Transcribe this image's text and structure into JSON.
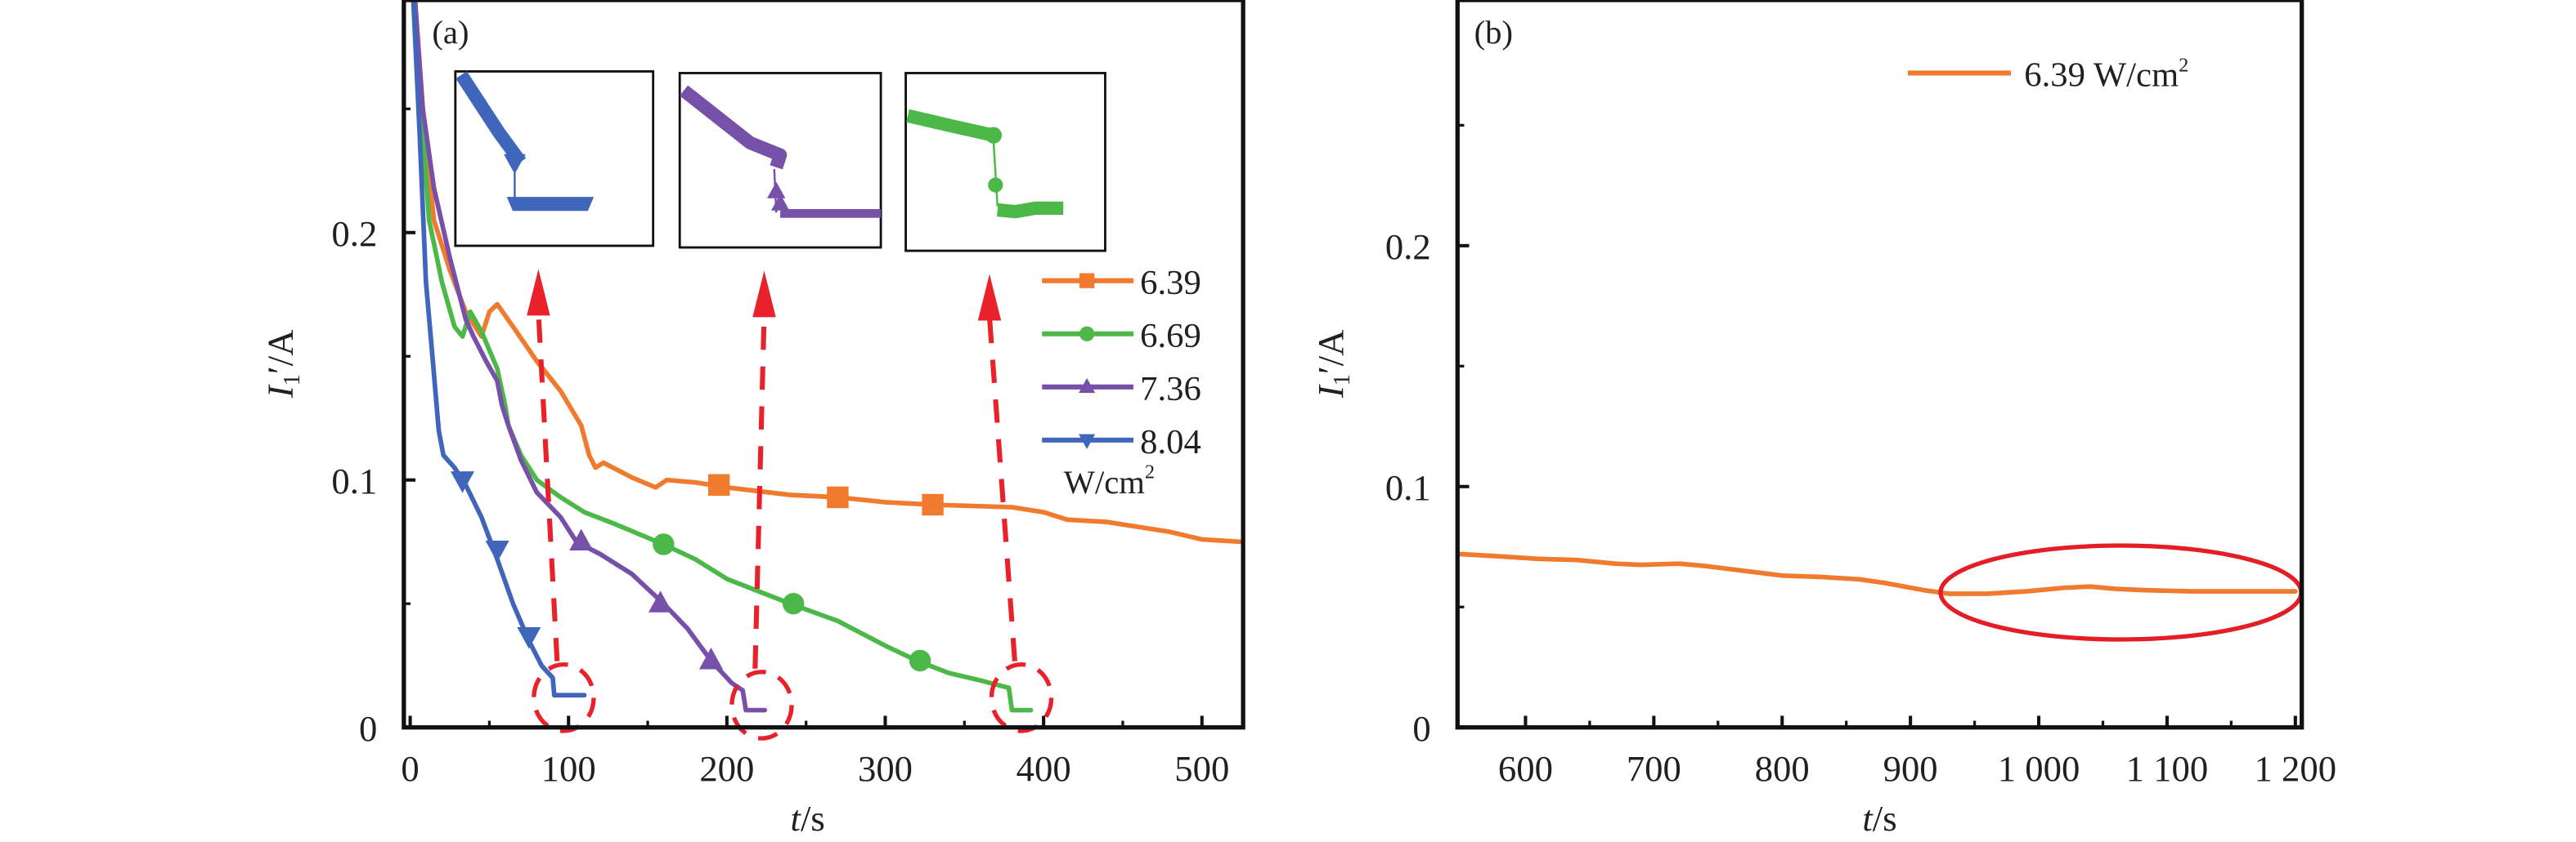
{
  "chart_data": [
    {
      "id": "a",
      "type": "line",
      "panel_label": "(a)",
      "xlabel": "t/s",
      "ylabel": "I1'/A",
      "xlim": [
        -4,
        526
      ],
      "ylim": [
        0,
        0.294
      ],
      "xticks": [
        0,
        100,
        200,
        300,
        400,
        500
      ],
      "yticks": [
        0,
        0.1,
        0.2
      ],
      "ytick_labels": [
        "0",
        "0.1",
        "0.2"
      ],
      "legend": {
        "position": "right",
        "unit": "W/cm2",
        "unit_text": "W/cm",
        "unit_sup": "2"
      },
      "series": [
        {
          "name": "6.39",
          "color": "#f07a2e",
          "marker": "square",
          "points": [
            [
              3,
              0.294
            ],
            [
              8,
              0.25
            ],
            [
              15,
              0.205
            ],
            [
              25,
              0.185
            ],
            [
              35,
              0.168
            ],
            [
              45,
              0.158
            ],
            [
              50,
              0.168
            ],
            [
              55,
              0.171
            ],
            [
              65,
              0.162
            ],
            [
              80,
              0.148
            ],
            [
              95,
              0.136
            ],
            [
              108,
              0.122
            ],
            [
              113,
              0.11
            ],
            [
              117,
              0.105
            ],
            [
              122,
              0.107
            ],
            [
              140,
              0.101
            ],
            [
              155,
              0.097
            ],
            [
              162,
              0.1
            ],
            [
              180,
              0.099
            ],
            [
              200,
              0.097
            ],
            [
              240,
              0.094
            ],
            [
              270,
              0.093
            ],
            [
              300,
              0.091
            ],
            [
              330,
              0.09
            ],
            [
              380,
              0.089
            ],
            [
              400,
              0.087
            ],
            [
              415,
              0.084
            ],
            [
              440,
              0.083
            ],
            [
              480,
              0.079
            ],
            [
              500,
              0.076
            ],
            [
              526,
              0.075
            ]
          ],
          "markers": [
            [
              195,
              0.098
            ],
            [
              270,
              0.093
            ],
            [
              330,
              0.09
            ]
          ]
        },
        {
          "name": "6.69",
          "color": "#4cb848",
          "marker": "circle",
          "points": [
            [
              3,
              0.294
            ],
            [
              8,
              0.24
            ],
            [
              12,
              0.205
            ],
            [
              20,
              0.18
            ],
            [
              28,
              0.162
            ],
            [
              33,
              0.158
            ],
            [
              38,
              0.168
            ],
            [
              45,
              0.16
            ],
            [
              55,
              0.145
            ],
            [
              60,
              0.13
            ],
            [
              62,
              0.122
            ],
            [
              70,
              0.11
            ],
            [
              80,
              0.1
            ],
            [
              95,
              0.093
            ],
            [
              110,
              0.087
            ],
            [
              130,
              0.082
            ],
            [
              160,
              0.074
            ],
            [
              180,
              0.068
            ],
            [
              200,
              0.06
            ],
            [
              240,
              0.05
            ],
            [
              270,
              0.043
            ],
            [
              300,
              0.033
            ],
            [
              320,
              0.027
            ],
            [
              340,
              0.022
            ],
            [
              360,
              0.019
            ],
            [
              378,
              0.016
            ],
            [
              380,
              0.007
            ],
            [
              392,
              0.007
            ]
          ],
          "markers": [
            [
              160,
              0.074
            ],
            [
              242,
              0.05
            ],
            [
              322,
              0.027
            ]
          ]
        },
        {
          "name": "7.36",
          "color": "#7650a9",
          "marker": "triangle-up",
          "points": [
            [
              3,
              0.294
            ],
            [
              8,
              0.25
            ],
            [
              15,
              0.218
            ],
            [
              25,
              0.19
            ],
            [
              35,
              0.165
            ],
            [
              40,
              0.158
            ],
            [
              48,
              0.148
            ],
            [
              55,
              0.14
            ],
            [
              58,
              0.13
            ],
            [
              62,
              0.122
            ],
            [
              70,
              0.108
            ],
            [
              80,
              0.095
            ],
            [
              95,
              0.085
            ],
            [
              105,
              0.075
            ],
            [
              120,
              0.07
            ],
            [
              140,
              0.062
            ],
            [
              160,
              0.05
            ],
            [
              175,
              0.04
            ],
            [
              190,
              0.027
            ],
            [
              203,
              0.018
            ],
            [
              210,
              0.015
            ],
            [
              212,
              0.007
            ],
            [
              224,
              0.007
            ]
          ],
          "markers": [
            [
              108,
              0.075
            ],
            [
              158,
              0.05
            ],
            [
              190,
              0.027
            ]
          ]
        },
        {
          "name": "8.04",
          "color": "#4066bb",
          "marker": "triangle-down",
          "points": [
            [
              2,
              0.294
            ],
            [
              6,
              0.24
            ],
            [
              10,
              0.18
            ],
            [
              14,
              0.15
            ],
            [
              18,
              0.12
            ],
            [
              21,
              0.11
            ],
            [
              28,
              0.105
            ],
            [
              35,
              0.098
            ],
            [
              45,
              0.085
            ],
            [
              55,
              0.068
            ],
            [
              65,
              0.05
            ],
            [
              75,
              0.035
            ],
            [
              83,
              0.025
            ],
            [
              90,
              0.02
            ],
            [
              91,
              0.013
            ],
            [
              110,
              0.013
            ]
          ],
          "markers": [
            [
              33,
              0.1
            ],
            [
              55,
              0.072
            ],
            [
              75,
              0.037
            ]
          ]
        }
      ],
      "insets": [
        {
          "series": "8.04",
          "color": "#4066bb",
          "marker": "triangle-down"
        },
        {
          "series": "7.36",
          "color": "#7650a9",
          "marker": "triangle-up"
        },
        {
          "series": "6.69",
          "color": "#4cb848",
          "marker": "circle"
        }
      ],
      "annotations": [
        {
          "type": "dashed-circle",
          "color": "#e8212a",
          "at": [
            97,
            0.012
          ],
          "target_inset": 0
        },
        {
          "type": "dashed-circle",
          "color": "#e8212a",
          "at": [
            222,
            0.009
          ],
          "target_inset": 1
        },
        {
          "type": "dashed-circle",
          "color": "#e8212a",
          "at": [
            386,
            0.012
          ],
          "target_inset": 2
        }
      ]
    },
    {
      "id": "b",
      "type": "line",
      "panel_label": "(b)",
      "xlabel": "t/s",
      "ylabel": "I1'/A",
      "xlim": [
        547,
        1205
      ],
      "ylim": [
        0,
        0.302
      ],
      "xticks": [
        600,
        700,
        800,
        900,
        1000,
        1100,
        1200
      ],
      "xtick_labels": [
        "600",
        "700",
        "800",
        "900",
        "1 000",
        "1 100",
        "1 200"
      ],
      "yticks": [
        0,
        0.1,
        0.2
      ],
      "ytick_labels": [
        "0",
        "0.1",
        "0.2"
      ],
      "legend": {
        "position": "top-right",
        "entry": "6.39 W/cm",
        "sup": "2"
      },
      "series": [
        {
          "name": "6.39 W/cm2",
          "color": "#f07a2e",
          "points": [
            [
              548,
              0.072
            ],
            [
              580,
              0.071
            ],
            [
              610,
              0.07
            ],
            [
              640,
              0.0695
            ],
            [
              670,
              0.068
            ],
            [
              690,
              0.0675
            ],
            [
              720,
              0.068
            ],
            [
              740,
              0.067
            ],
            [
              770,
              0.065
            ],
            [
              800,
              0.063
            ],
            [
              830,
              0.0625
            ],
            [
              860,
              0.0615
            ],
            [
              880,
              0.06
            ],
            [
              910,
              0.057
            ],
            [
              930,
              0.0555
            ],
            [
              960,
              0.0555
            ],
            [
              990,
              0.0565
            ],
            [
              1020,
              0.058
            ],
            [
              1040,
              0.0585
            ],
            [
              1060,
              0.0575
            ],
            [
              1080,
              0.057
            ],
            [
              1120,
              0.0565
            ],
            [
              1160,
              0.0565
            ],
            [
              1200,
              0.0565
            ]
          ]
        }
      ],
      "annotations": [
        {
          "type": "ellipse",
          "color": "#e31e25",
          "center": [
            1064,
            0.056
          ],
          "x_range": [
            922,
            1203
          ],
          "y_range": [
            0.037,
            0.076
          ]
        }
      ]
    }
  ]
}
